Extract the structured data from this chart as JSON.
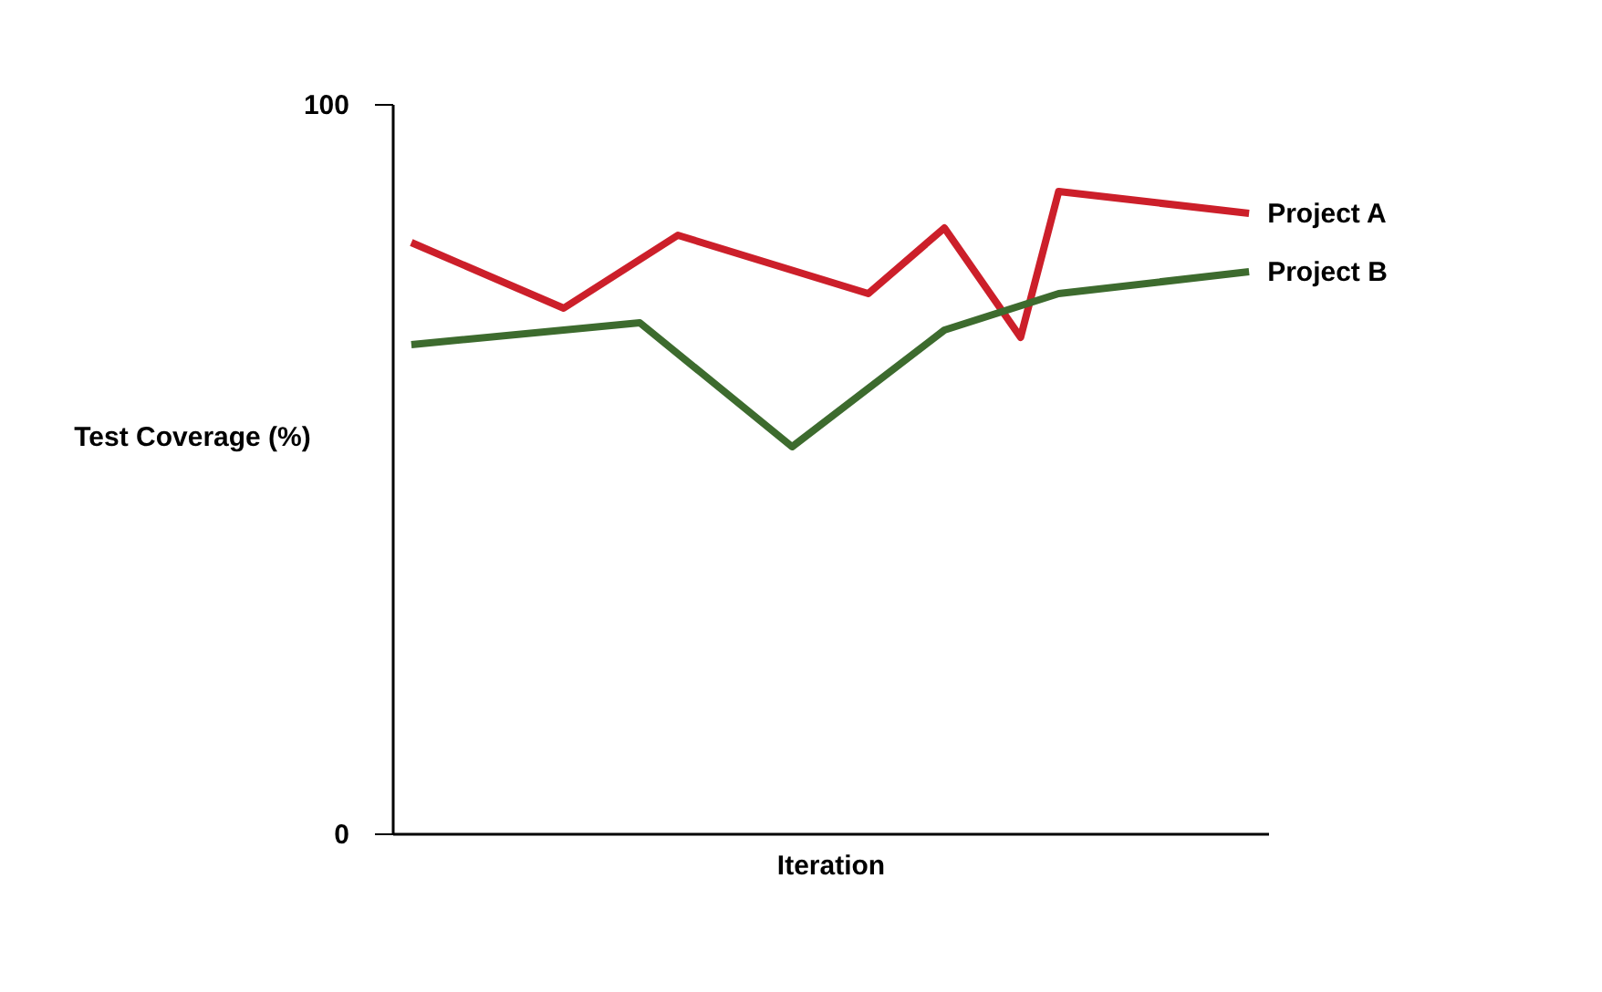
{
  "chart_data": {
    "type": "line",
    "xlabel": "Iteration",
    "ylabel": "Test Coverage (%)",
    "categories": [
      null,
      null,
      null,
      null,
      null,
      null,
      null,
      null,
      null,
      null,
      null,
      null,
      null,
      null,
      null,
      null,
      null,
      null,
      null,
      null,
      null,
      null,
      null
    ],
    "ylim": [
      0,
      100
    ],
    "yticks": [
      0,
      100
    ],
    "tick_labels": "y",
    "legend": false,
    "line_style": "solid",
    "series": [
      {
        "name": "Project A",
        "color": "#cc1f2a",
        "values": [
          81,
          null,
          null,
          null,
          72,
          null,
          null,
          82,
          null,
          null,
          null,
          null,
          74,
          null,
          83,
          null,
          68,
          88,
          null,
          null,
          null,
          null,
          85
        ]
      },
      {
        "name": "Project B",
        "color": "#3d6b2e",
        "values": [
          67,
          null,
          null,
          null,
          null,
          null,
          70,
          null,
          null,
          null,
          53,
          null,
          null,
          null,
          69,
          null,
          null,
          74,
          null,
          null,
          null,
          null,
          77
        ]
      }
    ]
  }
}
